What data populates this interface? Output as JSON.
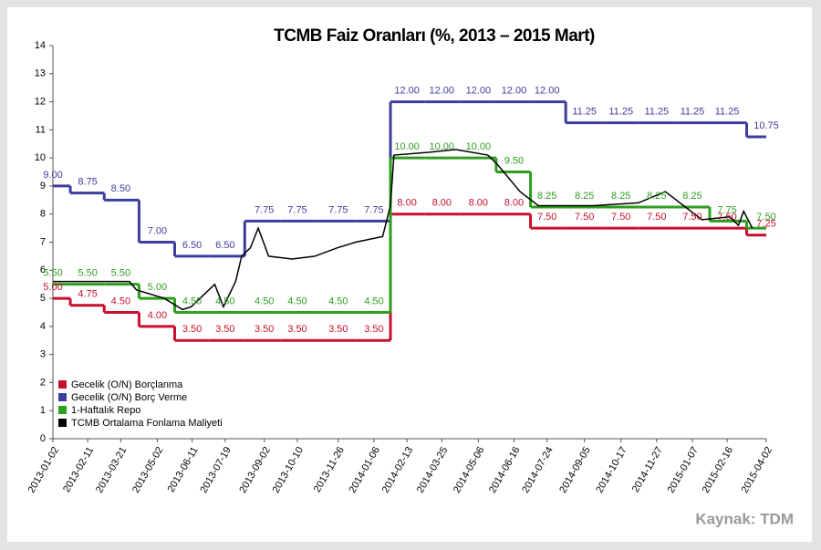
{
  "chart_data": {
    "type": "step-line",
    "title": "TCMB Faiz Oranları (%, 2013 – 2015 Mart)",
    "source": "Kaynak: TDM",
    "xlim": [
      "2013-01-02",
      "2015-04-02"
    ],
    "xticks": [
      "2013-01-02",
      "2013-02-11",
      "2013-03-21",
      "2013-05-02",
      "2013-06-11",
      "2013-07-19",
      "2013-09-02",
      "2013-10-10",
      "2013-11-26",
      "2014-01-06",
      "2014-02-13",
      "2014-03-25",
      "2014-05-06",
      "2014-06-16",
      "2014-07-24",
      "2014-09-05",
      "2014-10-17",
      "2014-11-27",
      "2015-01-07",
      "2015-02-16",
      "2015-04-02"
    ],
    "ylim": [
      0,
      14
    ],
    "yticks": [
      0,
      1,
      2,
      3,
      4,
      5,
      6,
      7,
      8,
      9,
      10,
      11,
      12,
      13,
      14
    ],
    "legend": "lower left",
    "series": [
      {
        "name": "Gecelik (O/N) Borçlanma",
        "color": "#c8102e",
        "step": "mid",
        "x": [
          "2013-01-02",
          "2013-02-11",
          "2013-03-21",
          "2013-05-02",
          "2013-06-11",
          "2013-07-19",
          "2013-09-02",
          "2013-10-10",
          "2013-11-26",
          "2014-01-06",
          "2014-02-13",
          "2014-03-25",
          "2014-05-06",
          "2014-06-16",
          "2014-07-24",
          "2014-09-05",
          "2014-10-17",
          "2014-11-27",
          "2015-01-07",
          "2015-02-16",
          "2015-04-02"
        ],
        "values": [
          5,
          4.75,
          4.5,
          4,
          3.5,
          3.5,
          3.5,
          3.5,
          3.5,
          3.5,
          8,
          8,
          8,
          8,
          7.5,
          7.5,
          7.5,
          7.5,
          7.5,
          7.5,
          7.25
        ],
        "value_labels": [
          "5.00",
          "4.75",
          "4.50",
          "4.00",
          "3.50",
          "3.50",
          "3.50",
          "3.50",
          "3.50",
          "3.50",
          "8.00",
          "8.00",
          "8.00",
          "8.00",
          "7.50",
          "7.50",
          "7.50",
          "7.50",
          "7.50",
          "7.50",
          "7.25"
        ]
      },
      {
        "name": "Gecelik (O/N) Borç Verme",
        "color": "#3d3d9e",
        "step": "mid",
        "x": [
          "2013-01-02",
          "2013-02-11",
          "2013-03-21",
          "2013-05-02",
          "2013-06-11",
          "2013-07-19",
          "2013-09-02",
          "2013-10-10",
          "2013-11-26",
          "2014-01-06",
          "2014-02-13",
          "2014-03-25",
          "2014-05-06",
          "2014-06-16",
          "2014-07-24",
          "2014-09-05",
          "2014-10-17",
          "2014-11-27",
          "2015-01-07",
          "2015-02-16",
          "2015-04-02"
        ],
        "values": [
          9,
          8.75,
          8.5,
          7,
          6.5,
          6.5,
          7.75,
          7.75,
          7.75,
          7.75,
          12,
          12,
          12,
          12,
          12,
          11.25,
          11.25,
          11.25,
          11.25,
          11.25,
          10.75
        ],
        "value_labels": [
          "9.00",
          "8.75",
          "8.50",
          "7.00",
          "6.50",
          "6.50",
          "7.75",
          "7.75",
          "7.75",
          "7.75",
          "12.00",
          "12.00",
          "12.00",
          "12.00",
          "12.00",
          "11.25",
          "11.25",
          "11.25",
          "11.25",
          "11.25",
          "10.75"
        ]
      },
      {
        "name": "1-Haftalık Repo",
        "color": "#2e9e1f",
        "step": "mid",
        "x": [
          "2013-01-02",
          "2013-02-11",
          "2013-03-21",
          "2013-05-02",
          "2013-06-11",
          "2013-07-19",
          "2013-09-02",
          "2013-10-10",
          "2013-11-26",
          "2014-01-06",
          "2014-02-13",
          "2014-03-25",
          "2014-05-06",
          "2014-06-16",
          "2014-07-24",
          "2014-09-05",
          "2014-10-17",
          "2014-11-27",
          "2015-01-07",
          "2015-02-16",
          "2015-04-02"
        ],
        "values": [
          5.5,
          5.5,
          5.5,
          5,
          4.5,
          4.5,
          4.5,
          4.5,
          4.5,
          4.5,
          10,
          10,
          10,
          9.5,
          8.25,
          8.25,
          8.25,
          8.25,
          8.25,
          7.75,
          7.5
        ],
        "value_labels": [
          "5.50",
          "5.50",
          "5.50",
          "5.00",
          "4.50",
          "4.50",
          "4.50",
          "4.50",
          "4.50",
          "4.50",
          "10.00",
          "10.00",
          "10.00",
          "9.50",
          "8.25",
          "8.25",
          "8.25",
          "8.25",
          "8.25",
          "7.75",
          "7.50"
        ]
      },
      {
        "name": "TCMB Ortalama Fonlama Maliyeti",
        "color": "#000000",
        "step": "none",
        "x": [
          "2013-01-02",
          "2013-03-31",
          "2013-04-08",
          "2013-05-10",
          "2013-05-31",
          "2013-06-10",
          "2013-07-07",
          "2013-07-17",
          "2013-07-31",
          "2013-08-07",
          "2013-08-17",
          "2013-08-26",
          "2013-09-07",
          "2013-10-04",
          "2013-10-30",
          "2013-11-25",
          "2013-12-16",
          "2014-01-16",
          "2014-01-25",
          "2014-01-29",
          "2014-03-10",
          "2014-04-10",
          "2014-05-17",
          "2014-05-27",
          "2014-06-23",
          "2014-07-14",
          "2014-09-15",
          "2014-11-06",
          "2014-12-07",
          "2014-12-28",
          "2015-01-18",
          "2015-02-19",
          "2015-03-01",
          "2015-03-07",
          "2015-03-17"
        ],
        "values": [
          5.6,
          5.6,
          5.3,
          5.0,
          4.6,
          4.7,
          5.5,
          4.7,
          5.6,
          6.5,
          6.8,
          7.5,
          6.5,
          6.4,
          6.5,
          6.8,
          7.0,
          7.2,
          8.3,
          10.1,
          10.2,
          10.3,
          10.1,
          9.8,
          8.8,
          8.3,
          8.3,
          8.4,
          8.8,
          8.3,
          7.8,
          7.9,
          7.6,
          8.1,
          7.5
        ]
      }
    ]
  }
}
